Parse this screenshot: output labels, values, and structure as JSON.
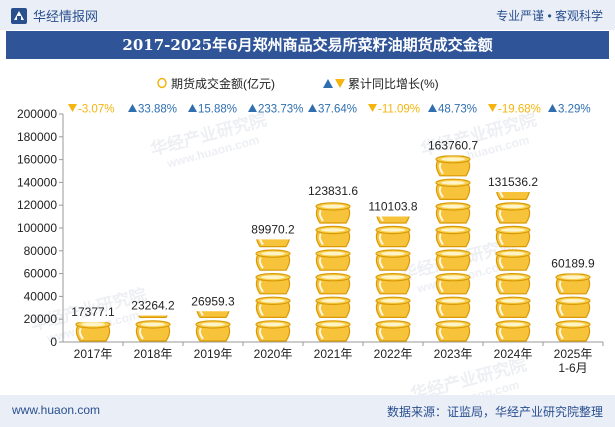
{
  "header": {
    "brand": "华经情报网",
    "tags": "专业严谨 • 客观科学"
  },
  "title": "2017-2025年6月郑州商品交易所菜籽油期货成交金额",
  "footer": {
    "url": "www.huaon.com",
    "source": "数据来源：证监局，华经产业研究院整理"
  },
  "watermarks": [
    "华经产业研究院",
    "www.huaon.com"
  ],
  "chart_data": {
    "type": "bar",
    "categories": [
      "2017年",
      "2018年",
      "2019年",
      "2020年",
      "2021年",
      "2022年",
      "2023年",
      "2024年",
      "2025年\n1-6月"
    ],
    "series": [
      {
        "name": "期货成交金额(亿元)",
        "values": [
          17377.1,
          23264.2,
          26959.3,
          89970.2,
          123831.6,
          110103.8,
          163760.7,
          131536.2,
          60189.9
        ],
        "color": "#f5b50e"
      },
      {
        "name": "累计同比增长(%)",
        "values_text": [
          "-3.07%",
          "33.88%",
          "15.88%",
          "233.73%",
          "37.64%",
          "-11.09%",
          "48.73%",
          "-19.68%",
          "3.29%"
        ],
        "directions": [
          "down",
          "up",
          "up",
          "up",
          "up",
          "down",
          "up",
          "down",
          "up"
        ],
        "up_color": "#2f6fb0",
        "down_color": "#f5b50e"
      }
    ],
    "yticks": [
      0,
      20000,
      40000,
      60000,
      80000,
      100000,
      120000,
      140000,
      160000,
      180000,
      200000
    ],
    "ylim": [
      0,
      200000
    ],
    "grid": false,
    "legend_position": "top-center"
  }
}
